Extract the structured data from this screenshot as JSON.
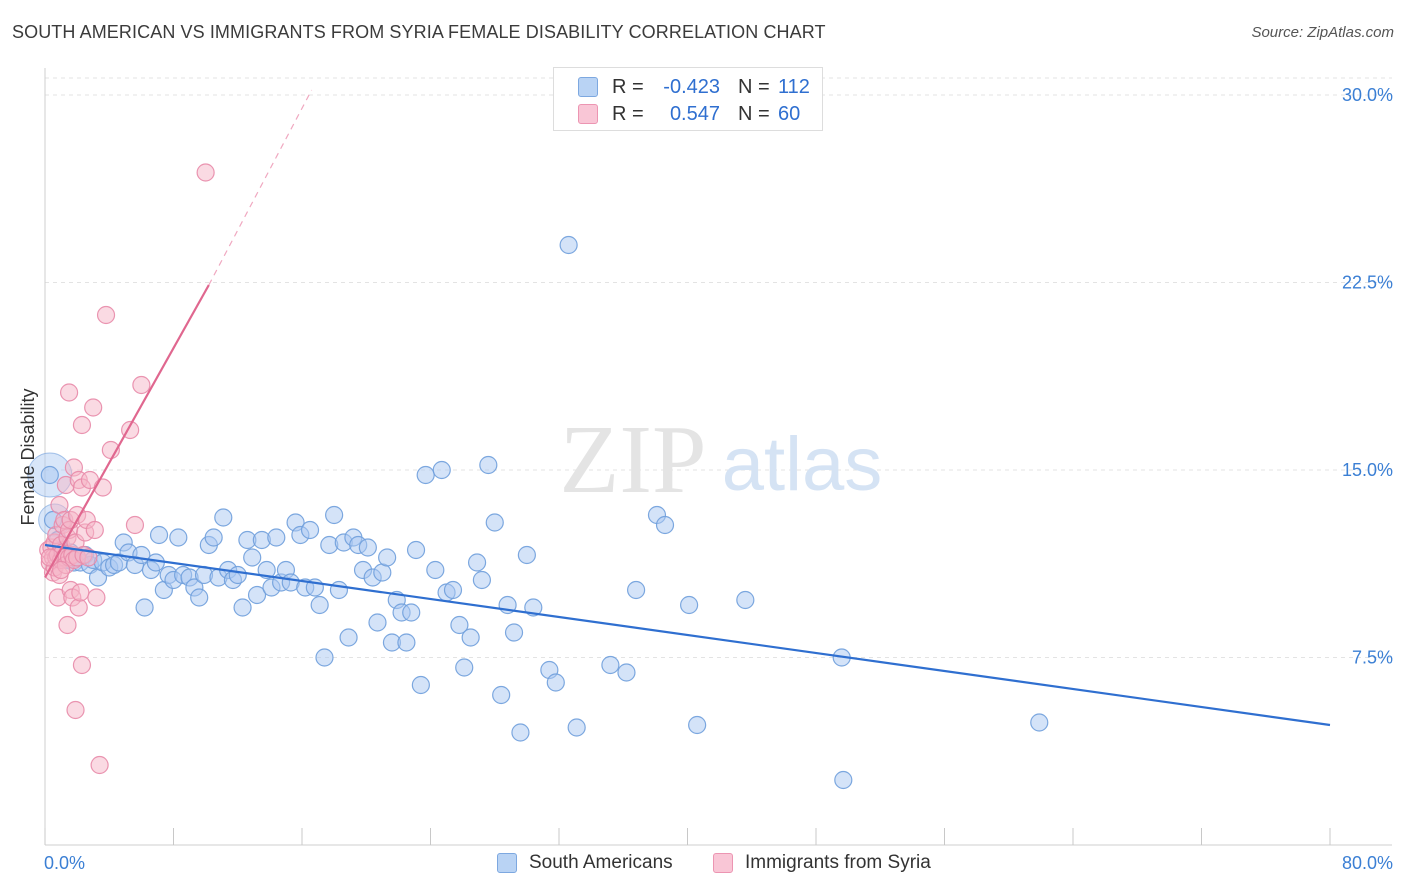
{
  "title": "SOUTH AMERICAN VS IMMIGRANTS FROM SYRIA FEMALE DISABILITY CORRELATION CHART",
  "source": "Source: ZipAtlas.com",
  "watermark": {
    "zip": "ZIP",
    "atlas": "atlas"
  },
  "legend": {
    "rows": [
      {
        "r_label": "R =",
        "r_value": "-0.423",
        "n_label": "N =",
        "n_value": "112"
      },
      {
        "r_label": "R =",
        "r_value": "0.547",
        "n_label": "N =",
        "n_value": "60"
      }
    ]
  },
  "bottom_legend": [
    "South Americans",
    "Immigrants from Syria"
  ],
  "colors": {
    "blue_fill": "#a9c8f2",
    "blue_stroke": "#6f9fdc",
    "blue_line": "#2f6fd0",
    "pink_fill": "#f5b5c8",
    "pink_stroke": "#e88aa8",
    "pink_line": "#e0678f",
    "axis_label": "#3b7fd4",
    "grid": "#e3e3e3"
  },
  "chart_data": {
    "type": "scatter",
    "title": "SOUTH AMERICAN VS IMMIGRANTS FROM SYRIA FEMALE DISABILITY CORRELATION CHART",
    "xlabel": "",
    "ylabel": "Female Disability",
    "xlim": [
      0,
      80
    ],
    "ylim": [
      0,
      31
    ],
    "x_tick_labels": [
      "0.0%",
      "80.0%"
    ],
    "y_ticks": [
      7.5,
      15.0,
      22.5,
      30.0
    ],
    "y_tick_labels": [
      "7.5%",
      "15.0%",
      "22.5%",
      "30.0%"
    ],
    "grid": true,
    "series": [
      {
        "name": "South Americans",
        "r": -0.423,
        "n": 112,
        "trend": {
          "x": [
            0,
            80
          ],
          "y": [
            12.0,
            4.8
          ]
        },
        "points": [
          [
            0.3,
            14.8
          ],
          [
            0.5,
            13.0
          ],
          [
            0.8,
            12.2
          ],
          [
            1.0,
            11.8
          ],
          [
            1.2,
            11.5
          ],
          [
            1.4,
            11.4
          ],
          [
            1.6,
            11.7
          ],
          [
            1.8,
            11.3
          ],
          [
            2.0,
            11.5
          ],
          [
            2.2,
            11.3
          ],
          [
            2.5,
            11.6
          ],
          [
            2.8,
            11.2
          ],
          [
            3.0,
            11.4
          ],
          [
            3.3,
            10.7
          ],
          [
            3.6,
            11.3
          ],
          [
            4.0,
            11.1
          ],
          [
            4.3,
            11.2
          ],
          [
            4.6,
            11.3
          ],
          [
            4.9,
            12.1
          ],
          [
            5.2,
            11.7
          ],
          [
            5.6,
            11.2
          ],
          [
            6.0,
            11.6
          ],
          [
            6.2,
            9.5
          ],
          [
            6.6,
            11.0
          ],
          [
            6.9,
            11.3
          ],
          [
            7.1,
            12.4
          ],
          [
            7.4,
            10.2
          ],
          [
            7.7,
            10.8
          ],
          [
            8.0,
            10.6
          ],
          [
            8.3,
            12.3
          ],
          [
            8.6,
            10.8
          ],
          [
            9.0,
            10.7
          ],
          [
            9.3,
            10.3
          ],
          [
            9.6,
            9.9
          ],
          [
            9.9,
            10.8
          ],
          [
            10.2,
            12.0
          ],
          [
            10.5,
            12.3
          ],
          [
            10.8,
            10.7
          ],
          [
            11.1,
            13.1
          ],
          [
            11.4,
            11.0
          ],
          [
            11.7,
            10.6
          ],
          [
            12.0,
            10.8
          ],
          [
            12.3,
            9.5
          ],
          [
            12.6,
            12.2
          ],
          [
            12.9,
            11.5
          ],
          [
            13.2,
            10.0
          ],
          [
            13.5,
            12.2
          ],
          [
            13.8,
            11.0
          ],
          [
            14.1,
            10.3
          ],
          [
            14.4,
            12.3
          ],
          [
            14.7,
            10.5
          ],
          [
            15.0,
            11.0
          ],
          [
            15.3,
            10.5
          ],
          [
            15.6,
            12.9
          ],
          [
            15.9,
            12.4
          ],
          [
            16.2,
            10.3
          ],
          [
            16.5,
            12.6
          ],
          [
            16.8,
            10.3
          ],
          [
            17.1,
            9.6
          ],
          [
            17.4,
            7.5
          ],
          [
            17.7,
            12.0
          ],
          [
            18.0,
            13.2
          ],
          [
            18.3,
            10.2
          ],
          [
            18.6,
            12.1
          ],
          [
            18.9,
            8.3
          ],
          [
            19.2,
            12.3
          ],
          [
            19.5,
            12.0
          ],
          [
            19.8,
            11.0
          ],
          [
            20.1,
            11.9
          ],
          [
            20.4,
            10.7
          ],
          [
            20.7,
            8.9
          ],
          [
            21.0,
            10.9
          ],
          [
            21.3,
            11.5
          ],
          [
            21.6,
            8.1
          ],
          [
            21.9,
            9.8
          ],
          [
            22.2,
            9.3
          ],
          [
            22.5,
            8.1
          ],
          [
            22.8,
            9.3
          ],
          [
            23.1,
            11.8
          ],
          [
            23.4,
            6.4
          ],
          [
            23.7,
            14.8
          ],
          [
            24.3,
            11.0
          ],
          [
            24.7,
            15.0
          ],
          [
            25.0,
            10.1
          ],
          [
            25.4,
            10.2
          ],
          [
            25.8,
            8.8
          ],
          [
            26.1,
            7.1
          ],
          [
            26.5,
            8.3
          ],
          [
            26.9,
            11.3
          ],
          [
            27.2,
            10.6
          ],
          [
            27.6,
            15.2
          ],
          [
            28.0,
            12.9
          ],
          [
            28.4,
            6.0
          ],
          [
            28.8,
            9.6
          ],
          [
            29.2,
            8.5
          ],
          [
            29.6,
            4.5
          ],
          [
            30.0,
            11.6
          ],
          [
            30.4,
            9.5
          ],
          [
            31.4,
            7.0
          ],
          [
            31.8,
            6.5
          ],
          [
            32.6,
            24.0
          ],
          [
            33.1,
            4.7
          ],
          [
            35.2,
            7.2
          ],
          [
            36.2,
            6.9
          ],
          [
            36.8,
            10.2
          ],
          [
            38.1,
            13.2
          ],
          [
            38.6,
            12.8
          ],
          [
            40.1,
            9.6
          ],
          [
            40.6,
            4.8
          ],
          [
            43.6,
            9.8
          ],
          [
            49.6,
            7.5
          ],
          [
            49.7,
            2.6
          ],
          [
            61.9,
            4.9
          ]
        ]
      },
      {
        "name": "Immigrants from Syria",
        "r": 0.547,
        "n": 60,
        "trend": {
          "x": [
            0,
            10.2
          ],
          "y": [
            10.7,
            22.4
          ],
          "extended": {
            "x": [
              10.2,
              16.6
            ],
            "y": [
              22.4,
              30.2
            ]
          }
        },
        "points": [
          [
            0.2,
            11.8
          ],
          [
            0.3,
            11.3
          ],
          [
            0.4,
            11.9
          ],
          [
            0.5,
            11.5
          ],
          [
            0.5,
            10.9
          ],
          [
            0.6,
            12.1
          ],
          [
            0.6,
            11.1
          ],
          [
            0.7,
            11.5
          ],
          [
            0.7,
            12.4
          ],
          [
            0.8,
            9.9
          ],
          [
            0.8,
            11.6
          ],
          [
            0.9,
            13.6
          ],
          [
            0.9,
            10.8
          ],
          [
            1.0,
            12.0
          ],
          [
            1.0,
            11.4
          ],
          [
            1.1,
            12.8
          ],
          [
            1.1,
            11.7
          ],
          [
            1.2,
            13.0
          ],
          [
            1.2,
            11.5
          ],
          [
            1.3,
            14.4
          ],
          [
            1.3,
            11.2
          ],
          [
            1.4,
            12.3
          ],
          [
            1.4,
            8.8
          ],
          [
            1.5,
            12.6
          ],
          [
            1.5,
            11.5
          ],
          [
            1.6,
            13.0
          ],
          [
            1.6,
            10.2
          ],
          [
            1.7,
            11.6
          ],
          [
            1.7,
            9.9
          ],
          [
            1.8,
            15.1
          ],
          [
            1.8,
            11.4
          ],
          [
            1.9,
            12.1
          ],
          [
            1.9,
            5.4
          ],
          [
            2.0,
            13.2
          ],
          [
            2.0,
            11.5
          ],
          [
            2.1,
            14.6
          ],
          [
            2.1,
            9.5
          ],
          [
            2.2,
            10.1
          ],
          [
            2.3,
            14.3
          ],
          [
            2.3,
            7.2
          ],
          [
            2.4,
            11.6
          ],
          [
            2.5,
            12.5
          ],
          [
            2.6,
            13.0
          ],
          [
            2.7,
            11.5
          ],
          [
            2.8,
            14.6
          ],
          [
            3.0,
            17.5
          ],
          [
            3.1,
            12.6
          ],
          [
            3.2,
            9.9
          ],
          [
            3.4,
            3.2
          ],
          [
            3.6,
            14.3
          ],
          [
            3.8,
            21.2
          ],
          [
            4.1,
            15.8
          ],
          [
            1.5,
            18.1
          ],
          [
            2.3,
            16.8
          ],
          [
            5.3,
            16.6
          ],
          [
            5.6,
            12.8
          ],
          [
            6.0,
            18.4
          ],
          [
            1.0,
            11.0
          ],
          [
            0.3,
            11.5
          ],
          [
            10.0,
            26.9
          ]
        ]
      }
    ]
  }
}
